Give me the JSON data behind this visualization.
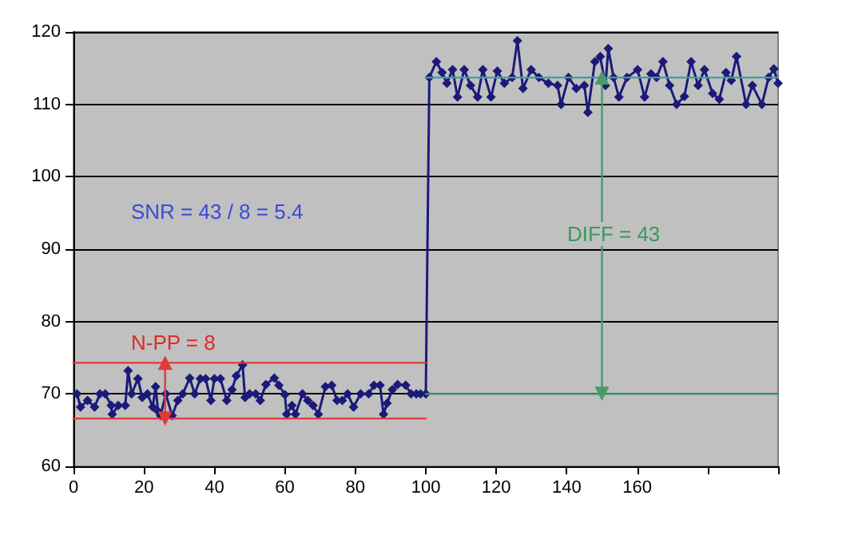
{
  "chart_data": {
    "type": "line",
    "xlim": [
      0,
      200
    ],
    "xticks": [
      0,
      20,
      40,
      60,
      80,
      100,
      120,
      140,
      160,
      {
        "value": 180,
        "label": null
      },
      {
        "value": 200,
        "label": null
      }
    ],
    "ylim": [
      60,
      120
    ],
    "yticks": [
      60,
      70,
      80,
      90,
      100,
      110,
      120
    ],
    "grid": "y",
    "marker": "diamond",
    "series": [
      {
        "color": "#1a1a7a",
        "x": [
          1,
          2,
          4,
          6,
          7.5,
          9,
          10.7,
          11,
          12.7,
          14.7,
          15.5,
          16.5,
          18.3,
          19.5,
          21,
          22.5,
          23.3,
          24,
          24.7,
          26.2,
          28,
          29.6,
          31,
          33,
          34.4,
          36,
          37.5,
          39,
          40,
          41.7,
          43.5,
          45,
          46.2,
          48,
          48.7,
          50,
          51.7,
          53,
          54.6,
          57,
          58.3,
          60,
          60.5,
          62,
          63,
          65,
          66.5,
          68,
          69.5,
          71.5,
          73.3,
          74.8,
          76.3,
          77.8,
          79.5,
          81.5,
          83.8,
          85.3,
          87,
          88,
          89,
          90.5,
          92,
          94.3,
          95.8,
          97.3,
          98.5,
          100,
          101,
          103,
          104.6,
          106,
          107.6,
          109,
          110.9,
          112.7,
          114.7,
          116.2,
          118.5,
          120.3,
          122.3,
          124.5,
          126,
          127.6,
          129.9,
          132.1,
          134.8,
          137.4,
          138.4,
          140.5,
          142.7,
          145,
          146,
          148,
          149.5,
          151,
          151.8,
          153.3,
          154.8,
          157.1,
          160.1,
          162.1,
          163.9,
          165.5,
          167.3,
          169.2,
          171.2,
          173.4,
          175.3,
          177.3,
          179.1,
          181.4,
          183.3,
          185.2,
          186.7,
          188.2,
          190.9,
          192.7,
          195.4,
          197.3,
          198.8,
          200
        ],
        "values": [
          70,
          68.2,
          69.1,
          68.2,
          70,
          70,
          68.4,
          67.2,
          68.4,
          68.4,
          73.2,
          70,
          72.1,
          69.5,
          70,
          68.2,
          71,
          67.6,
          67,
          70,
          67,
          69.1,
          70,
          72.2,
          70,
          72.1,
          72.1,
          69.1,
          72.1,
          72.1,
          69.1,
          70.6,
          72.5,
          74,
          69.5,
          70,
          70,
          69.1,
          71.3,
          72.2,
          71.2,
          69.9,
          67.2,
          68.4,
          67.2,
          70,
          69.1,
          68.4,
          67.2,
          71,
          71.2,
          69.1,
          69.1,
          70,
          68.2,
          70,
          70,
          71.2,
          71.2,
          67.2,
          68.7,
          70.6,
          71.3,
          71.2,
          70,
          70,
          70,
          70,
          113.7,
          115.9,
          114.4,
          112.9,
          114.8,
          111,
          114.8,
          112.6,
          111,
          114.8,
          111,
          114.6,
          112.9,
          113.7,
          118.8,
          112.2,
          114.8,
          113.7,
          112.9,
          112.6,
          110,
          113.7,
          112.2,
          112.6,
          108.9,
          115.9,
          116.6,
          112.6,
          117.7,
          113.7,
          111,
          113.7,
          114.8,
          111,
          114.2,
          113.7,
          115.9,
          112.6,
          110,
          111.1,
          115.9,
          112.6,
          114.8,
          111.5,
          110.7,
          114.4,
          113.3,
          116.6,
          110,
          112.6,
          110,
          113.7,
          114.9,
          112.9
        ]
      },
      {
        "color": "#e03a3a",
        "x": [
          0,
          100
        ],
        "values": [
          74.3,
          74.3
        ],
        "marker": "none"
      },
      {
        "color": "#e03a3a",
        "x": [
          0,
          100
        ],
        "values": [
          66.6,
          66.6
        ],
        "marker": "none"
      },
      {
        "color": "#e03a3a",
        "x": [
          26,
          26
        ],
        "values": [
          66.6,
          74.3
        ],
        "marker": "triangle"
      },
      {
        "color": "#4a9a6a",
        "x": [
          100,
          200
        ],
        "values": [
          70,
          70
        ],
        "marker": "none"
      },
      {
        "color": "#4a9a9a",
        "x": [
          100,
          200
        ],
        "values": [
          113.7,
          113.7
        ],
        "marker": "none"
      },
      {
        "color": "#4a9a6a",
        "x": [
          150,
          150
        ],
        "values": [
          113.7,
          70
        ],
        "marker": "triangle"
      }
    ],
    "annotations": [
      "SNR = 43 / 8 = 5.4",
      "N-PP = 8",
      "DIFF = 43"
    ]
  }
}
